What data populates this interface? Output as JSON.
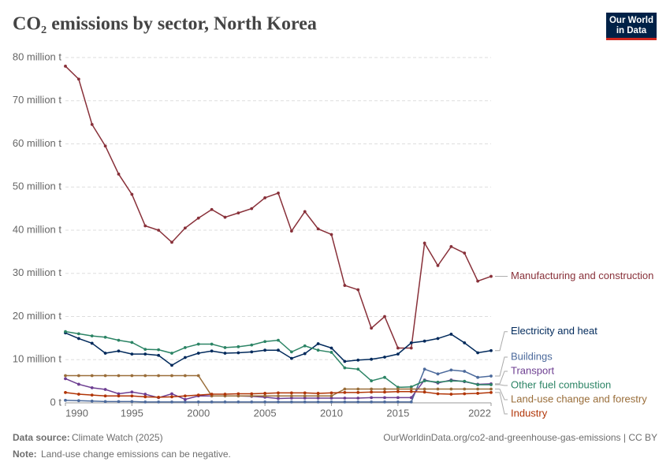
{
  "chart_data": {
    "type": "line",
    "title": "CO₂ emissions by sector, North Korea",
    "logo": [
      "Our World",
      "in Data"
    ],
    "source_label": "Data source:",
    "source": "Climate Watch (2025)",
    "url": "OurWorldinData.org/co2-and-greenhouse-gas-emissions | CC BY",
    "note_label": "Note:",
    "note": "Land-use change emissions can be negative.",
    "x": [
      1990,
      1991,
      1992,
      1993,
      1994,
      1995,
      1996,
      1997,
      1998,
      1999,
      2000,
      2001,
      2002,
      2003,
      2004,
      2005,
      2006,
      2007,
      2008,
      2009,
      2010,
      2011,
      2012,
      2013,
      2014,
      2015,
      2016,
      2017,
      2018,
      2019,
      2020,
      2021,
      2022
    ],
    "xlim": [
      1990,
      2022
    ],
    "xticks": [
      1990,
      1995,
      2000,
      2005,
      2010,
      2015,
      2022
    ],
    "ylim": [
      0,
      80
    ],
    "yticks": [
      {
        "value": 0,
        "label": "0 t"
      },
      {
        "value": 10,
        "label": "10 million t"
      },
      {
        "value": 20,
        "label": "20 million t"
      },
      {
        "value": 30,
        "label": "30 million t"
      },
      {
        "value": 40,
        "label": "40 million t"
      },
      {
        "value": 50,
        "label": "50 million t"
      },
      {
        "value": 60,
        "label": "60 million t"
      },
      {
        "value": 70,
        "label": "70 million t"
      },
      {
        "value": 80,
        "label": "80 million t"
      }
    ],
    "grid": true,
    "series": [
      {
        "name": "Manufacturing and construction",
        "color": "#883039",
        "values": [
          78,
          75,
          64.5,
          59.5,
          53,
          48.3,
          41,
          40,
          37.2,
          40.5,
          42.8,
          44.8,
          43,
          44,
          45,
          47.5,
          48.6,
          39.8,
          44.3,
          40.3,
          39,
          27.2,
          26.2,
          17.3,
          20,
          12.7,
          12.7,
          37,
          31.8,
          36.2,
          34.7,
          28.2,
          29.3
        ]
      },
      {
        "name": "Electricity and heat",
        "color": "#00295b",
        "values": [
          16.2,
          14.9,
          13.8,
          11.5,
          12,
          11.3,
          11.3,
          11,
          8.7,
          10.5,
          11.5,
          12,
          11.5,
          11.6,
          11.8,
          12.2,
          12.2,
          10.3,
          11.4,
          13.7,
          12.7,
          9.6,
          9.9,
          10.1,
          10.6,
          11.3,
          13.9,
          14.3,
          14.9,
          15.9,
          13.9,
          11.6,
          12.1
        ]
      },
      {
        "name": "Buildings",
        "color": "#4c6a9c",
        "values": [
          0.6,
          0.5,
          0.4,
          0.3,
          0.3,
          0.3,
          0.2,
          0.2,
          0.2,
          0.2,
          0.2,
          0.2,
          0.2,
          0.2,
          0.2,
          0.2,
          0.2,
          0.2,
          0.2,
          0.2,
          0.2,
          0.2,
          0.2,
          0.2,
          0.2,
          0.2,
          0.2,
          7.8,
          6.7,
          7.6,
          7.3,
          5.9,
          6.2
        ]
      },
      {
        "name": "Transport",
        "color": "#6d3e91",
        "values": [
          5.6,
          4.3,
          3.5,
          3.1,
          2.1,
          2.5,
          2,
          1.2,
          2.1,
          0.8,
          1.6,
          1.6,
          1.6,
          1.6,
          1.5,
          1.3,
          1,
          1.1,
          1.1,
          1.1,
          1.1,
          1.1,
          1.1,
          1.2,
          1.2,
          1.2,
          1.2,
          5.3,
          4.6,
          5.3,
          4.9,
          4.3,
          4.4
        ]
      },
      {
        "name": "Other fuel combustion",
        "color": "#2c8465",
        "values": [
          16.5,
          16,
          15.5,
          15.2,
          14.5,
          14,
          12.4,
          12.3,
          11.5,
          12.8,
          13.6,
          13.6,
          12.8,
          13,
          13.4,
          14.2,
          14.5,
          11.8,
          13.2,
          12.2,
          11.7,
          8.1,
          7.8,
          5.1,
          5.9,
          3.6,
          3.7,
          5.1,
          4.8,
          5.1,
          5,
          4.2,
          4.2
        ]
      },
      {
        "name": "Land-use change and forestry",
        "color": "#996d39",
        "values": [
          6.3,
          6.3,
          6.3,
          6.3,
          6.3,
          6.3,
          6.3,
          6.3,
          6.3,
          6.3,
          6.3,
          1.6,
          1.6,
          1.6,
          1.6,
          1.6,
          1.6,
          1.6,
          1.6,
          1.6,
          1.6,
          3.2,
          3.2,
          3.2,
          3.2,
          3.2,
          3.2,
          3.2,
          3.2,
          3.2,
          3.2,
          3.2,
          3.2
        ]
      },
      {
        "name": "Industry",
        "color": "#b13507",
        "values": [
          2.4,
          2,
          1.8,
          1.6,
          1.6,
          1.6,
          1.4,
          1.3,
          1.4,
          1.6,
          1.8,
          2,
          2,
          2.1,
          2.1,
          2.2,
          2.3,
          2.3,
          2.3,
          2.2,
          2.3,
          2.4,
          2.4,
          2.5,
          2.5,
          2.6,
          2.6,
          2.5,
          2.1,
          2,
          2.1,
          2.2,
          2.4
        ]
      }
    ]
  }
}
